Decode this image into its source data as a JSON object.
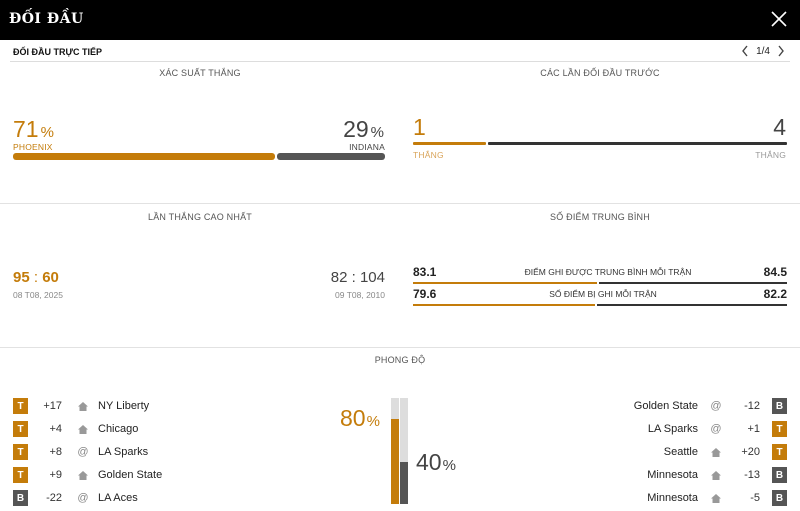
{
  "header": {
    "title": "ĐỐI ĐẦU",
    "close_icon": "close-icon"
  },
  "subheader": {
    "label": "ĐỐI ĐẦU TRỰC TIẾP",
    "page": "1/4"
  },
  "win_probability": {
    "title": "XÁC SUẤT THẮNG",
    "home": {
      "value": "71",
      "unit": "%",
      "team": "PHOENIX",
      "fraction": 0.71
    },
    "away": {
      "value": "29",
      "unit": "%",
      "team": "INDIANA",
      "fraction": 0.29
    }
  },
  "previous_meetings": {
    "title": "CÁC LẦN ĐỐI ĐẦU TRƯỚC",
    "home": {
      "wins": "1",
      "label": "THẮNG"
    },
    "away": {
      "wins": "4",
      "label": "THẮNG"
    }
  },
  "biggest_win": {
    "title": "LẦN THẮNG CAO NHẤT",
    "home": {
      "score_a": "95",
      "sep": ":",
      "score_b": "60",
      "date": "08 T08, 2025"
    },
    "away": {
      "score_a": "82",
      "sep": ":",
      "score_b": "104",
      "date": "09 T08, 2010"
    }
  },
  "average_points": {
    "title": "SỐ ĐIỂM TRUNG BÌNH",
    "rows": [
      {
        "home": "83.1",
        "label": "ĐIỂM GHI ĐƯỢC TRUNG BÌNH MỖI TRẬN",
        "away": "84.5",
        "home_fraction": 0.496
      },
      {
        "home": "79.6",
        "label": "SỐ ĐIỂM BỊ GHI MỖI TRẬN",
        "away": "82.2",
        "home_fraction": 0.492
      }
    ]
  },
  "form": {
    "title": "PHONG ĐỘ",
    "home_pct": "80",
    "away_pct": "40",
    "unit": "%",
    "home_fraction": 0.8,
    "away_fraction": 0.4,
    "home_games": [
      {
        "result": "T",
        "diff": "+17",
        "venue": "home",
        "opponent": "NY Liberty"
      },
      {
        "result": "T",
        "diff": "+4",
        "venue": "home",
        "opponent": "Chicago"
      },
      {
        "result": "T",
        "diff": "+8",
        "venue": "away",
        "opponent": "LA Sparks"
      },
      {
        "result": "T",
        "diff": "+9",
        "venue": "home",
        "opponent": "Golden State"
      },
      {
        "result": "B",
        "diff": "-22",
        "venue": "away",
        "opponent": "LA Aces"
      }
    ],
    "away_games": [
      {
        "result": "B",
        "diff": "-12",
        "venue": "away",
        "opponent": "Golden State"
      },
      {
        "result": "T",
        "diff": "+1",
        "venue": "away",
        "opponent": "LA Sparks"
      },
      {
        "result": "T",
        "diff": "+20",
        "venue": "home",
        "opponent": "Seattle"
      },
      {
        "result": "B",
        "diff": "-13",
        "venue": "home",
        "opponent": "Minnesota"
      },
      {
        "result": "B",
        "diff": "-5",
        "venue": "home",
        "opponent": "Minnesota"
      }
    ]
  },
  "colors": {
    "accent": "#c47c0a",
    "loss": "#555555",
    "header_bg": "#000000"
  }
}
